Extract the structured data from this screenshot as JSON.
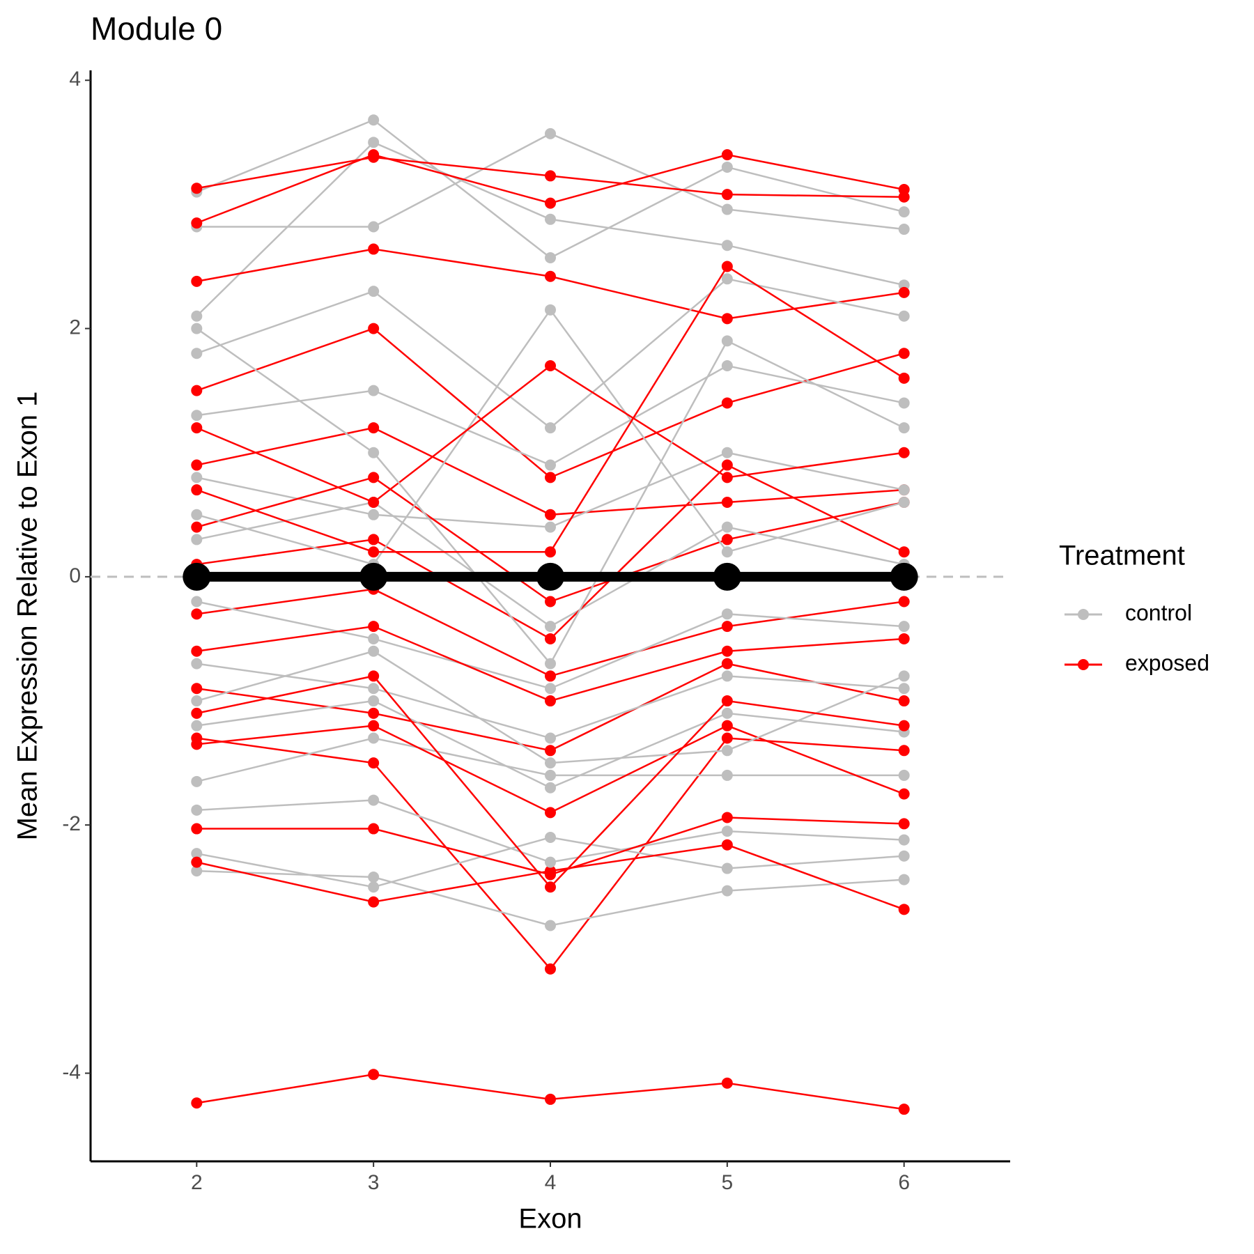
{
  "chart_data": {
    "type": "line",
    "title": "Module  0",
    "x_label": "Exon",
    "y_label": "Mean Expression Relative to Exon 1",
    "legend_title": "Treatment",
    "legend_position": "right",
    "x": [
      2,
      3,
      4,
      5,
      6
    ],
    "xlim": [
      1.4,
      6.6
    ],
    "xticks": [
      2,
      3,
      4,
      5,
      6
    ],
    "ylim": [
      -4.71,
      4.08
    ],
    "yticks": [
      -4,
      -2,
      0,
      2,
      4
    ],
    "grid": false,
    "reference_line": 0,
    "series": [
      {
        "name": "control",
        "color": "#bebebe",
        "lines": [
          [
            3.1,
            3.68,
            2.57,
            3.3,
            2.94
          ],
          [
            2.82,
            2.82,
            3.57,
            2.96,
            2.8
          ],
          [
            2.1,
            3.5,
            2.88,
            2.67,
            2.35
          ],
          [
            -2.37,
            -2.42,
            -2.81,
            -2.53,
            -2.44
          ],
          [
            -2.23,
            -2.5,
            -2.1,
            -2.35,
            -2.25
          ],
          [
            -1.88,
            -1.8,
            -2.3,
            -2.05,
            -2.12
          ],
          [
            -1.65,
            -1.3,
            -1.6,
            -1.6,
            -1.6
          ],
          [
            1.8,
            2.3,
            1.2,
            2.4,
            2.1
          ],
          [
            1.3,
            1.5,
            0.9,
            1.7,
            1.4
          ],
          [
            0.8,
            0.5,
            0.4,
            1.0,
            0.7
          ],
          [
            0.3,
            0.6,
            -0.4,
            0.4,
            0.1
          ],
          [
            -0.2,
            -0.5,
            -0.9,
            -0.3,
            -0.4
          ],
          [
            -0.7,
            -0.9,
            -1.3,
            -0.8,
            -0.9
          ],
          [
            -1.2,
            -1.0,
            -1.7,
            -1.1,
            -1.25
          ],
          [
            0.5,
            0.1,
            2.15,
            0.2,
            0.6
          ],
          [
            2.0,
            1.0,
            -0.7,
            1.9,
            1.2
          ],
          [
            -1.0,
            -0.6,
            -1.5,
            -1.4,
            -0.8
          ]
        ]
      },
      {
        "name": "exposed",
        "color": "#ff0000",
        "lines": [
          [
            -4.24,
            -4.01,
            -4.21,
            -4.08,
            -4.29
          ],
          [
            -1.3,
            -1.5,
            -3.16,
            -1.3,
            -1.4
          ],
          [
            3.13,
            3.38,
            3.23,
            3.08,
            3.06
          ],
          [
            2.85,
            3.4,
            3.01,
            3.4,
            3.12
          ],
          [
            -2.3,
            -2.62,
            -2.37,
            -2.16,
            -2.68
          ],
          [
            -2.03,
            -2.03,
            -2.4,
            -1.94,
            -1.99
          ],
          [
            2.38,
            2.64,
            2.42,
            2.08,
            2.29
          ],
          [
            1.5,
            2.0,
            0.8,
            1.4,
            1.8
          ],
          [
            0.9,
            1.2,
            0.5,
            0.6,
            0.7
          ],
          [
            0.4,
            0.8,
            -0.2,
            0.3,
            0.6
          ],
          [
            -0.3,
            -0.1,
            -0.8,
            -0.4,
            -0.2
          ],
          [
            -0.9,
            -1.1,
            -1.4,
            -0.7,
            -1.0
          ],
          [
            -1.35,
            -1.2,
            -1.9,
            -1.2,
            -1.75
          ],
          [
            0.1,
            0.3,
            -0.5,
            0.9,
            0.2
          ],
          [
            1.2,
            0.6,
            1.7,
            0.8,
            1.0
          ],
          [
            -0.6,
            -0.4,
            -1.0,
            -0.6,
            -0.5
          ],
          [
            0.7,
            0.2,
            0.2,
            2.5,
            1.6
          ],
          [
            -1.1,
            -0.8,
            -2.5,
            -1.0,
            -1.2
          ]
        ]
      }
    ],
    "mean": {
      "color": "#000000",
      "values": [
        0,
        0,
        0,
        0,
        0
      ]
    }
  }
}
